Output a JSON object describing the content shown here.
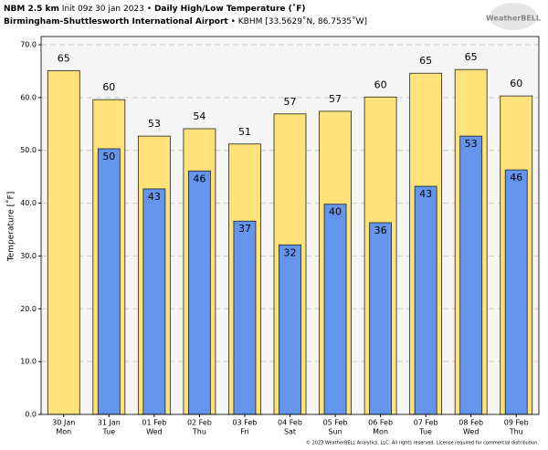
{
  "chart_data": {
    "type": "bar",
    "model": "NBM 2.5 km",
    "init": "Init 09z 30 jan 2023 •",
    "title": "Daily High/Low Temperature (˚F)",
    "station": "Birmingham-Shuttlesworth International Airport",
    "station_info": "• KBHM [33.5629˚N, 86.7535˚W]",
    "logo": "WeatherBELL",
    "footer": "© 2023 WeatherBELL Analytics, LLC. All rights reserved. License required for commercial distribution.",
    "ylabel": "Temperature [˚F]",
    "categories": [
      "30 Jan",
      "31 Jan",
      "01 Feb",
      "02 Feb",
      "03 Feb",
      "04 Feb",
      "05 Feb",
      "06 Feb",
      "07 Feb",
      "08 Feb",
      "09 Feb"
    ],
    "weekdays": [
      "Mon",
      "Tue",
      "Wed",
      "Thu",
      "Fri",
      "Sat",
      "Sun",
      "Mon",
      "Tue",
      "Wed",
      "Thu"
    ],
    "series": [
      {
        "color": "#ffe27a",
        "values": [
          65.1,
          59.6,
          52.7,
          54.1,
          51.2,
          56.9,
          57.4,
          60.1,
          64.6,
          65.3,
          60.3
        ],
        "value_labels": [
          "65",
          "60",
          "53",
          "54",
          "51",
          "57",
          "57",
          "60",
          "65",
          "65",
          "60"
        ]
      },
      {
        "color": "#6495ed",
        "values": [
          null,
          50.3,
          42.7,
          46.1,
          36.6,
          32.1,
          39.8,
          36.3,
          43.2,
          52.7,
          46.3
        ],
        "value_labels": [
          null,
          "50",
          "43",
          "46",
          "37",
          "32",
          "40",
          "36",
          "43",
          "53",
          "46"
        ]
      }
    ],
    "ylim": [
      0,
      70
    ],
    "yticks": [
      {
        "value": 0,
        "label": "0.0"
      },
      {
        "value": 10,
        "label": "10.0"
      },
      {
        "value": 20,
        "label": "20.0"
      },
      {
        "value": 30,
        "label": "30.0"
      },
      {
        "value": 40,
        "label": "40.0"
      },
      {
        "value": 50,
        "label": "50.0"
      },
      {
        "value": 60,
        "label": "60.0"
      },
      {
        "value": 70,
        "label": "70.0"
      }
    ],
    "grid": true
  }
}
